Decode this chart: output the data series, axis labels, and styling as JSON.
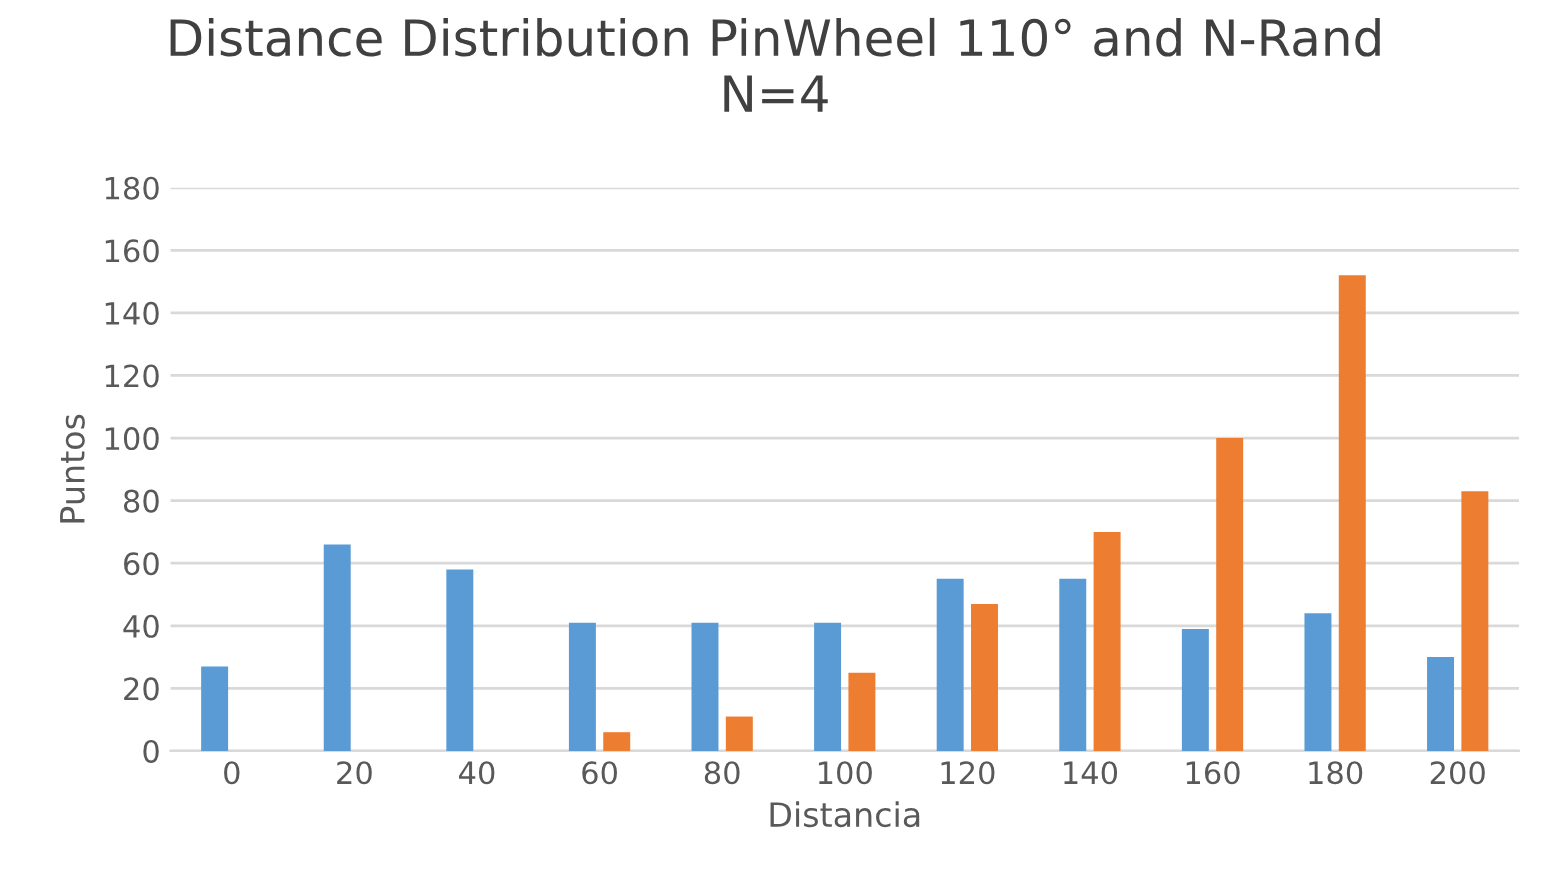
{
  "chart_data": {
    "type": "bar",
    "title": "Distance Distribution PinWheel 110° and N-Rand\nN=4",
    "xlabel": "Distancia",
    "ylabel": "Puntos",
    "categories": [
      "0",
      "20",
      "40",
      "60",
      "80",
      "100",
      "120",
      "140",
      "160",
      "180",
      "200"
    ],
    "series": [
      {
        "color": "#5b9bd5",
        "values": [
          27,
          66,
          58,
          41,
          41,
          41,
          55,
          55,
          39,
          44,
          30
        ]
      },
      {
        "color": "#ed7d31",
        "values": [
          0,
          0,
          0,
          6,
          11,
          25,
          47,
          70,
          100,
          152,
          83
        ]
      }
    ],
    "ylim": [
      0,
      180
    ],
    "yticks": [
      0,
      20,
      40,
      60,
      80,
      100,
      120,
      140,
      160,
      180
    ],
    "grid": "y",
    "legend": false
  }
}
